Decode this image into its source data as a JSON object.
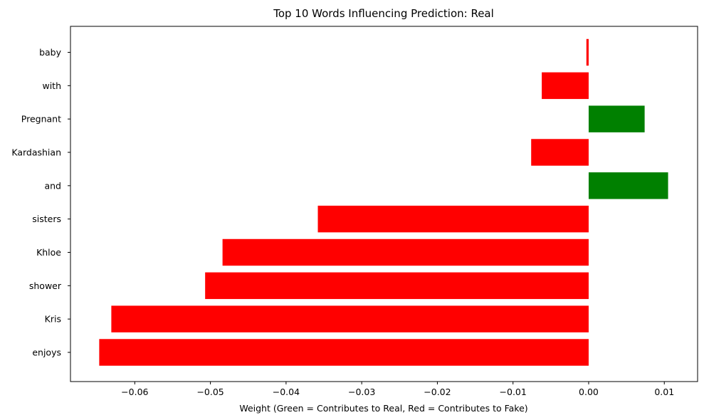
{
  "chart_data": {
    "type": "bar",
    "orientation": "horizontal",
    "title": "Top 10 Words Influencing Prediction: Real",
    "xlabel": "Weight (Green = Contributes to Real, Red = Contributes to Fake)",
    "ylabel": "",
    "categories": [
      "baby",
      "with",
      "Pregnant",
      "Kardashian",
      "and",
      "sisters",
      "Khloe",
      "shower",
      "Kris",
      "enjoys"
    ],
    "values": [
      -0.0003,
      -0.0062,
      0.0074,
      -0.0076,
      0.0105,
      -0.0358,
      -0.0484,
      -0.0507,
      -0.0631,
      -0.0647
    ],
    "xlim": [
      -0.0685,
      0.0144
    ],
    "xticks": [
      -0.06,
      -0.05,
      -0.04,
      -0.03,
      -0.02,
      -0.01,
      0.0,
      0.01
    ],
    "xtick_labels": [
      "−0.06",
      "−0.05",
      "−0.04",
      "−0.03",
      "−0.02",
      "−0.01",
      "0.00",
      "0.01"
    ],
    "grid": false,
    "colors": {
      "positive": "#008000",
      "negative": "#ff0000"
    }
  }
}
